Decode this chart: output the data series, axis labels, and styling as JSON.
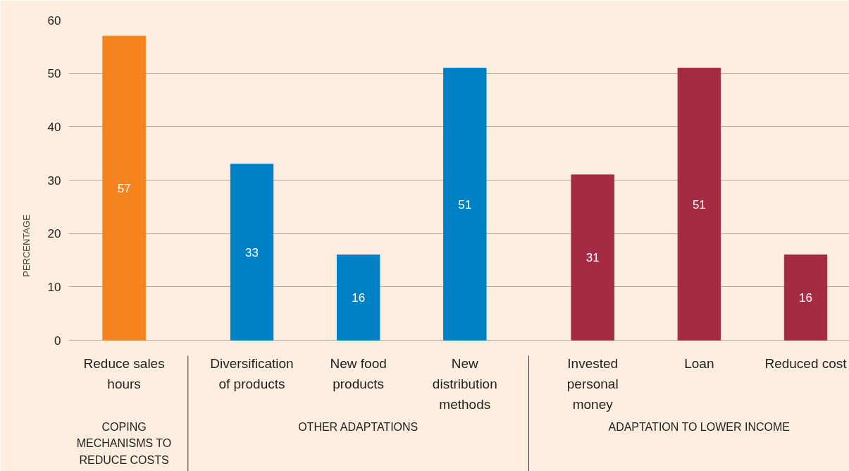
{
  "chart_data": {
    "type": "bar",
    "ylabel": "PERCENTAGE",
    "categories": [
      "Reduce sales hours",
      "Diversification of products",
      "New food products",
      "New distribution methods",
      "Invested personal money",
      "Loan",
      "Reduced cost"
    ],
    "values": [
      57,
      33,
      16,
      51,
      31,
      51,
      16
    ],
    "colors": [
      "#f5841f",
      "#0081c6",
      "#0081c6",
      "#0081c6",
      "#a52a44",
      "#a52a44",
      "#a52a44"
    ],
    "ylim": [
      0,
      60
    ],
    "yticks": [
      0,
      10,
      20,
      30,
      40,
      50,
      60
    ],
    "grid": "y",
    "data_labels": true,
    "annotations": [
      "COPING MECHANISMS TO REDUCE COSTS",
      "OTHER ADAPTATIONS",
      "ADAPTATION TO LOWER INCOME"
    ]
  }
}
